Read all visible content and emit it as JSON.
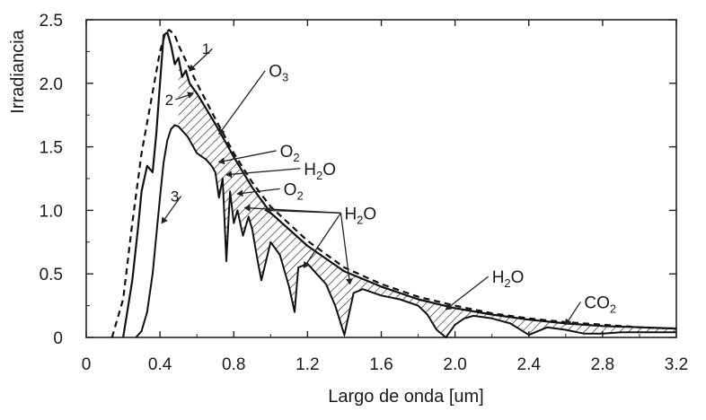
{
  "chart_data": {
    "type": "line",
    "title": "",
    "xlabel": "Largo de onda [um]",
    "ylabel": "Irradiancia",
    "xlim": [
      0,
      3.2
    ],
    "ylim": [
      0,
      2.5
    ],
    "x_ticks": [
      "0",
      "0.4",
      "0.8",
      "1.2",
      "1.6",
      "2.0",
      "2.4",
      "2.8",
      "3.2"
    ],
    "y_ticks": [
      "0",
      "0.5",
      "1.0",
      "1.5",
      "2.0",
      "2.5"
    ],
    "grid": false,
    "legend": "none",
    "series": [
      {
        "name": "1",
        "style": "dashed",
        "x": [
          0.14,
          0.2,
          0.25,
          0.3,
          0.35,
          0.4,
          0.43,
          0.45,
          0.48,
          0.5,
          0.55,
          0.6,
          0.7,
          0.8,
          0.9,
          1.0,
          1.2,
          1.4,
          1.6,
          1.8,
          2.0,
          2.2,
          2.4,
          2.6,
          2.8,
          3.0,
          3.2
        ],
        "y": [
          0.0,
          0.3,
          0.9,
          1.45,
          1.85,
          2.25,
          2.4,
          2.42,
          2.38,
          2.3,
          2.15,
          2.0,
          1.72,
          1.45,
          1.22,
          1.03,
          0.76,
          0.55,
          0.42,
          0.32,
          0.25,
          0.19,
          0.15,
          0.12,
          0.1,
          0.08,
          0.07
        ]
      },
      {
        "name": "2",
        "style": "solid",
        "x": [
          0.2,
          0.25,
          0.28,
          0.3,
          0.33,
          0.36,
          0.38,
          0.4,
          0.42,
          0.44,
          0.46,
          0.48,
          0.5,
          0.52,
          0.54,
          0.56,
          0.6,
          0.7,
          0.8,
          0.9,
          1.0,
          1.2,
          1.4,
          1.6,
          1.8,
          2.0,
          2.2,
          2.4,
          2.6,
          2.8,
          3.0,
          3.2
        ],
        "y": [
          0.0,
          0.45,
          0.85,
          1.15,
          1.35,
          1.3,
          1.6,
          2.0,
          2.38,
          2.4,
          2.3,
          2.15,
          2.2,
          2.05,
          2.1,
          2.0,
          1.92,
          1.68,
          1.42,
          1.18,
          0.98,
          0.72,
          0.52,
          0.4,
          0.3,
          0.23,
          0.18,
          0.14,
          0.11,
          0.09,
          0.08,
          0.07
        ]
      },
      {
        "name": "3",
        "style": "solid",
        "x": [
          0.27,
          0.3,
          0.33,
          0.36,
          0.38,
          0.4,
          0.42,
          0.44,
          0.46,
          0.48,
          0.5,
          0.55,
          0.6,
          0.65,
          0.68,
          0.7,
          0.72,
          0.74,
          0.76,
          0.78,
          0.8,
          0.82,
          0.85,
          0.88,
          0.9,
          0.93,
          0.95,
          1.0,
          1.05,
          1.1,
          1.13,
          1.15,
          1.2,
          1.25,
          1.3,
          1.35,
          1.4,
          1.45,
          1.5,
          1.6,
          1.7,
          1.8,
          1.85,
          1.9,
          1.95,
          2.0,
          2.05,
          2.1,
          2.2,
          2.3,
          2.4,
          2.5,
          2.6,
          2.7,
          2.8,
          2.9,
          3.0,
          3.2
        ],
        "y": [
          0.0,
          0.05,
          0.2,
          0.5,
          0.8,
          1.1,
          1.38,
          1.55,
          1.64,
          1.67,
          1.66,
          1.58,
          1.45,
          1.4,
          1.35,
          1.3,
          1.1,
          1.25,
          0.6,
          1.15,
          0.9,
          1.0,
          0.8,
          0.95,
          0.85,
          0.6,
          0.45,
          0.75,
          0.65,
          0.4,
          0.2,
          0.55,
          0.58,
          0.5,
          0.42,
          0.25,
          0.02,
          0.35,
          0.38,
          0.33,
          0.3,
          0.25,
          0.18,
          0.06,
          0.0,
          0.1,
          0.15,
          0.17,
          0.15,
          0.11,
          0.02,
          0.08,
          0.06,
          0.03,
          0.03,
          0.04,
          0.04,
          0.04
        ]
      }
    ],
    "annotations": [
      {
        "base": "O",
        "sub": "3",
        "text_x": 0.99,
        "text_y": 2.05,
        "arrow_x": 0.72,
        "arrow_y": 1.6
      },
      {
        "base": "O",
        "sub": "2",
        "text_x": 1.05,
        "text_y": 1.42,
        "arrow_x": 0.72,
        "arrow_y": 1.38
      },
      {
        "base": "H",
        "sub": "2",
        "tail": "O",
        "text_x": 1.18,
        "text_y": 1.28,
        "arrow_x": 0.76,
        "arrow_y": 1.28
      },
      {
        "base": "O",
        "sub": "2",
        "text_x": 1.07,
        "text_y": 1.12,
        "arrow_x": 0.82,
        "arrow_y": 1.13
      },
      {
        "base": "H",
        "sub": "2",
        "tail": "O",
        "text_x": 1.4,
        "text_y": 0.93,
        "arrow_x": 0.97,
        "arrow_y": 1.0,
        "extra_arrows": [
          [
            0.86,
            1.02
          ],
          [
            1.18,
            0.55
          ],
          [
            1.43,
            0.42
          ]
        ]
      },
      {
        "base": "H",
        "sub": "2",
        "tail": "O",
        "text_x": 2.2,
        "text_y": 0.43,
        "arrow_x": 1.95,
        "arrow_y": 0.22
      },
      {
        "base": "CO",
        "sub": "2",
        "text_x": 2.7,
        "text_y": 0.23,
        "arrow_x": 2.6,
        "arrow_y": 0.1
      }
    ],
    "curve_labels": [
      {
        "text": "1",
        "x": 0.65,
        "y": 2.23,
        "arrow_x": 0.56,
        "arrow_y": 2.1
      },
      {
        "text": "2",
        "x": 0.45,
        "y": 1.83,
        "arrow_x": 0.58,
        "arrow_y": 1.92
      },
      {
        "text": "3",
        "x": 0.48,
        "y": 1.07,
        "arrow_x": 0.41,
        "arrow_y": 0.9
      }
    ]
  }
}
